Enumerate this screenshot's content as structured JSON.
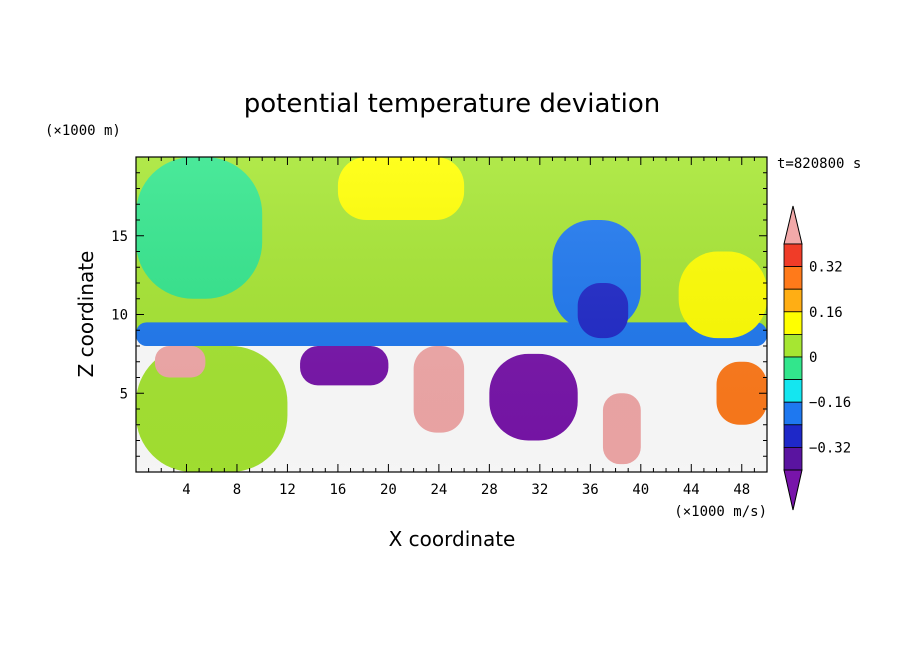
{
  "chart_data": {
    "type": "heatmap",
    "title": "potential temperature deviation",
    "xlabel": "X coordinate",
    "ylabel": "Z coordinate",
    "x_unit": "(×1000 m/s)",
    "y_unit": "(×1000 m)",
    "time_label": "t=820800 s",
    "xlim": [
      0,
      50
    ],
    "ylim": [
      0,
      20
    ],
    "x_ticks": [
      "4",
      "8",
      "12",
      "16",
      "20",
      "24",
      "28",
      "32",
      "36",
      "40",
      "44",
      "48"
    ],
    "y_ticks": [
      "5",
      "10",
      "15"
    ],
    "colorbar": {
      "tick_labels": [
        "0.32",
        "0.16",
        "0",
        "−0.16",
        "−0.32"
      ],
      "levels": [
        {
          "lower": 0.4,
          "color": "#f2a9a9"
        },
        {
          "lower": 0.32,
          "color": "#f03c28"
        },
        {
          "lower": 0.24,
          "color": "#ff7a1a"
        },
        {
          "lower": 0.16,
          "color": "#ffae14"
        },
        {
          "lower": 0.08,
          "color": "#ffff00"
        },
        {
          "lower": 0.0,
          "color": "#a6e632"
        },
        {
          "lower": -0.08,
          "color": "#32e68c"
        },
        {
          "lower": -0.16,
          "color": "#14e6f0"
        },
        {
          "lower": -0.24,
          "color": "#1e78f0"
        },
        {
          "lower": -0.32,
          "color": "#1e28c8"
        },
        {
          "lower": -0.4,
          "color": "#5a14a0"
        },
        {
          "lower": null,
          "color": "#7814aa"
        }
      ]
    },
    "field_regions": [
      {
        "desc": "upper background",
        "x": [
          0,
          50
        ],
        "z": [
          8.5,
          20
        ],
        "value": 0.02
      },
      {
        "desc": "upper-left green band",
        "x": [
          0,
          10
        ],
        "z": [
          11,
          20
        ],
        "value": -0.03
      },
      {
        "desc": "top yellow patch",
        "x": [
          16,
          26
        ],
        "z": [
          16,
          20
        ],
        "value": 0.1
      },
      {
        "desc": "cyan stripe near tropopause",
        "x": [
          0,
          50
        ],
        "z": [
          8,
          9.5
        ],
        "value": -0.18
      },
      {
        "desc": "cyan column",
        "x": [
          33,
          40
        ],
        "z": [
          9,
          16
        ],
        "value": -0.18
      },
      {
        "desc": "blue column",
        "x": [
          35,
          39
        ],
        "z": [
          8.5,
          12
        ],
        "value": -0.26
      },
      {
        "desc": "right yellow region",
        "x": [
          43,
          50
        ],
        "z": [
          8.5,
          14
        ],
        "value": 0.12
      },
      {
        "desc": "lower-left mixed",
        "x": [
          0,
          12
        ],
        "z": [
          0,
          8
        ],
        "value": 0.05
      },
      {
        "desc": "purple anomaly left",
        "x": [
          13,
          20
        ],
        "z": [
          5.5,
          8
        ],
        "value": -0.45
      },
      {
        "desc": "purple anomaly center",
        "x": [
          28,
          35
        ],
        "z": [
          2,
          7.5
        ],
        "value": -0.45
      },
      {
        "desc": "pink anomaly left",
        "x": [
          1.5,
          5.5
        ],
        "z": [
          6,
          8
        ],
        "value": 0.45
      },
      {
        "desc": "pink anomaly center",
        "x": [
          22,
          26
        ],
        "z": [
          2.5,
          8
        ],
        "value": 0.45
      },
      {
        "desc": "pink anomaly right",
        "x": [
          37,
          40
        ],
        "z": [
          0.5,
          5
        ],
        "value": 0.45
      },
      {
        "desc": "lower-right orange",
        "x": [
          46,
          50
        ],
        "z": [
          3,
          7
        ],
        "value": 0.25
      }
    ]
  }
}
